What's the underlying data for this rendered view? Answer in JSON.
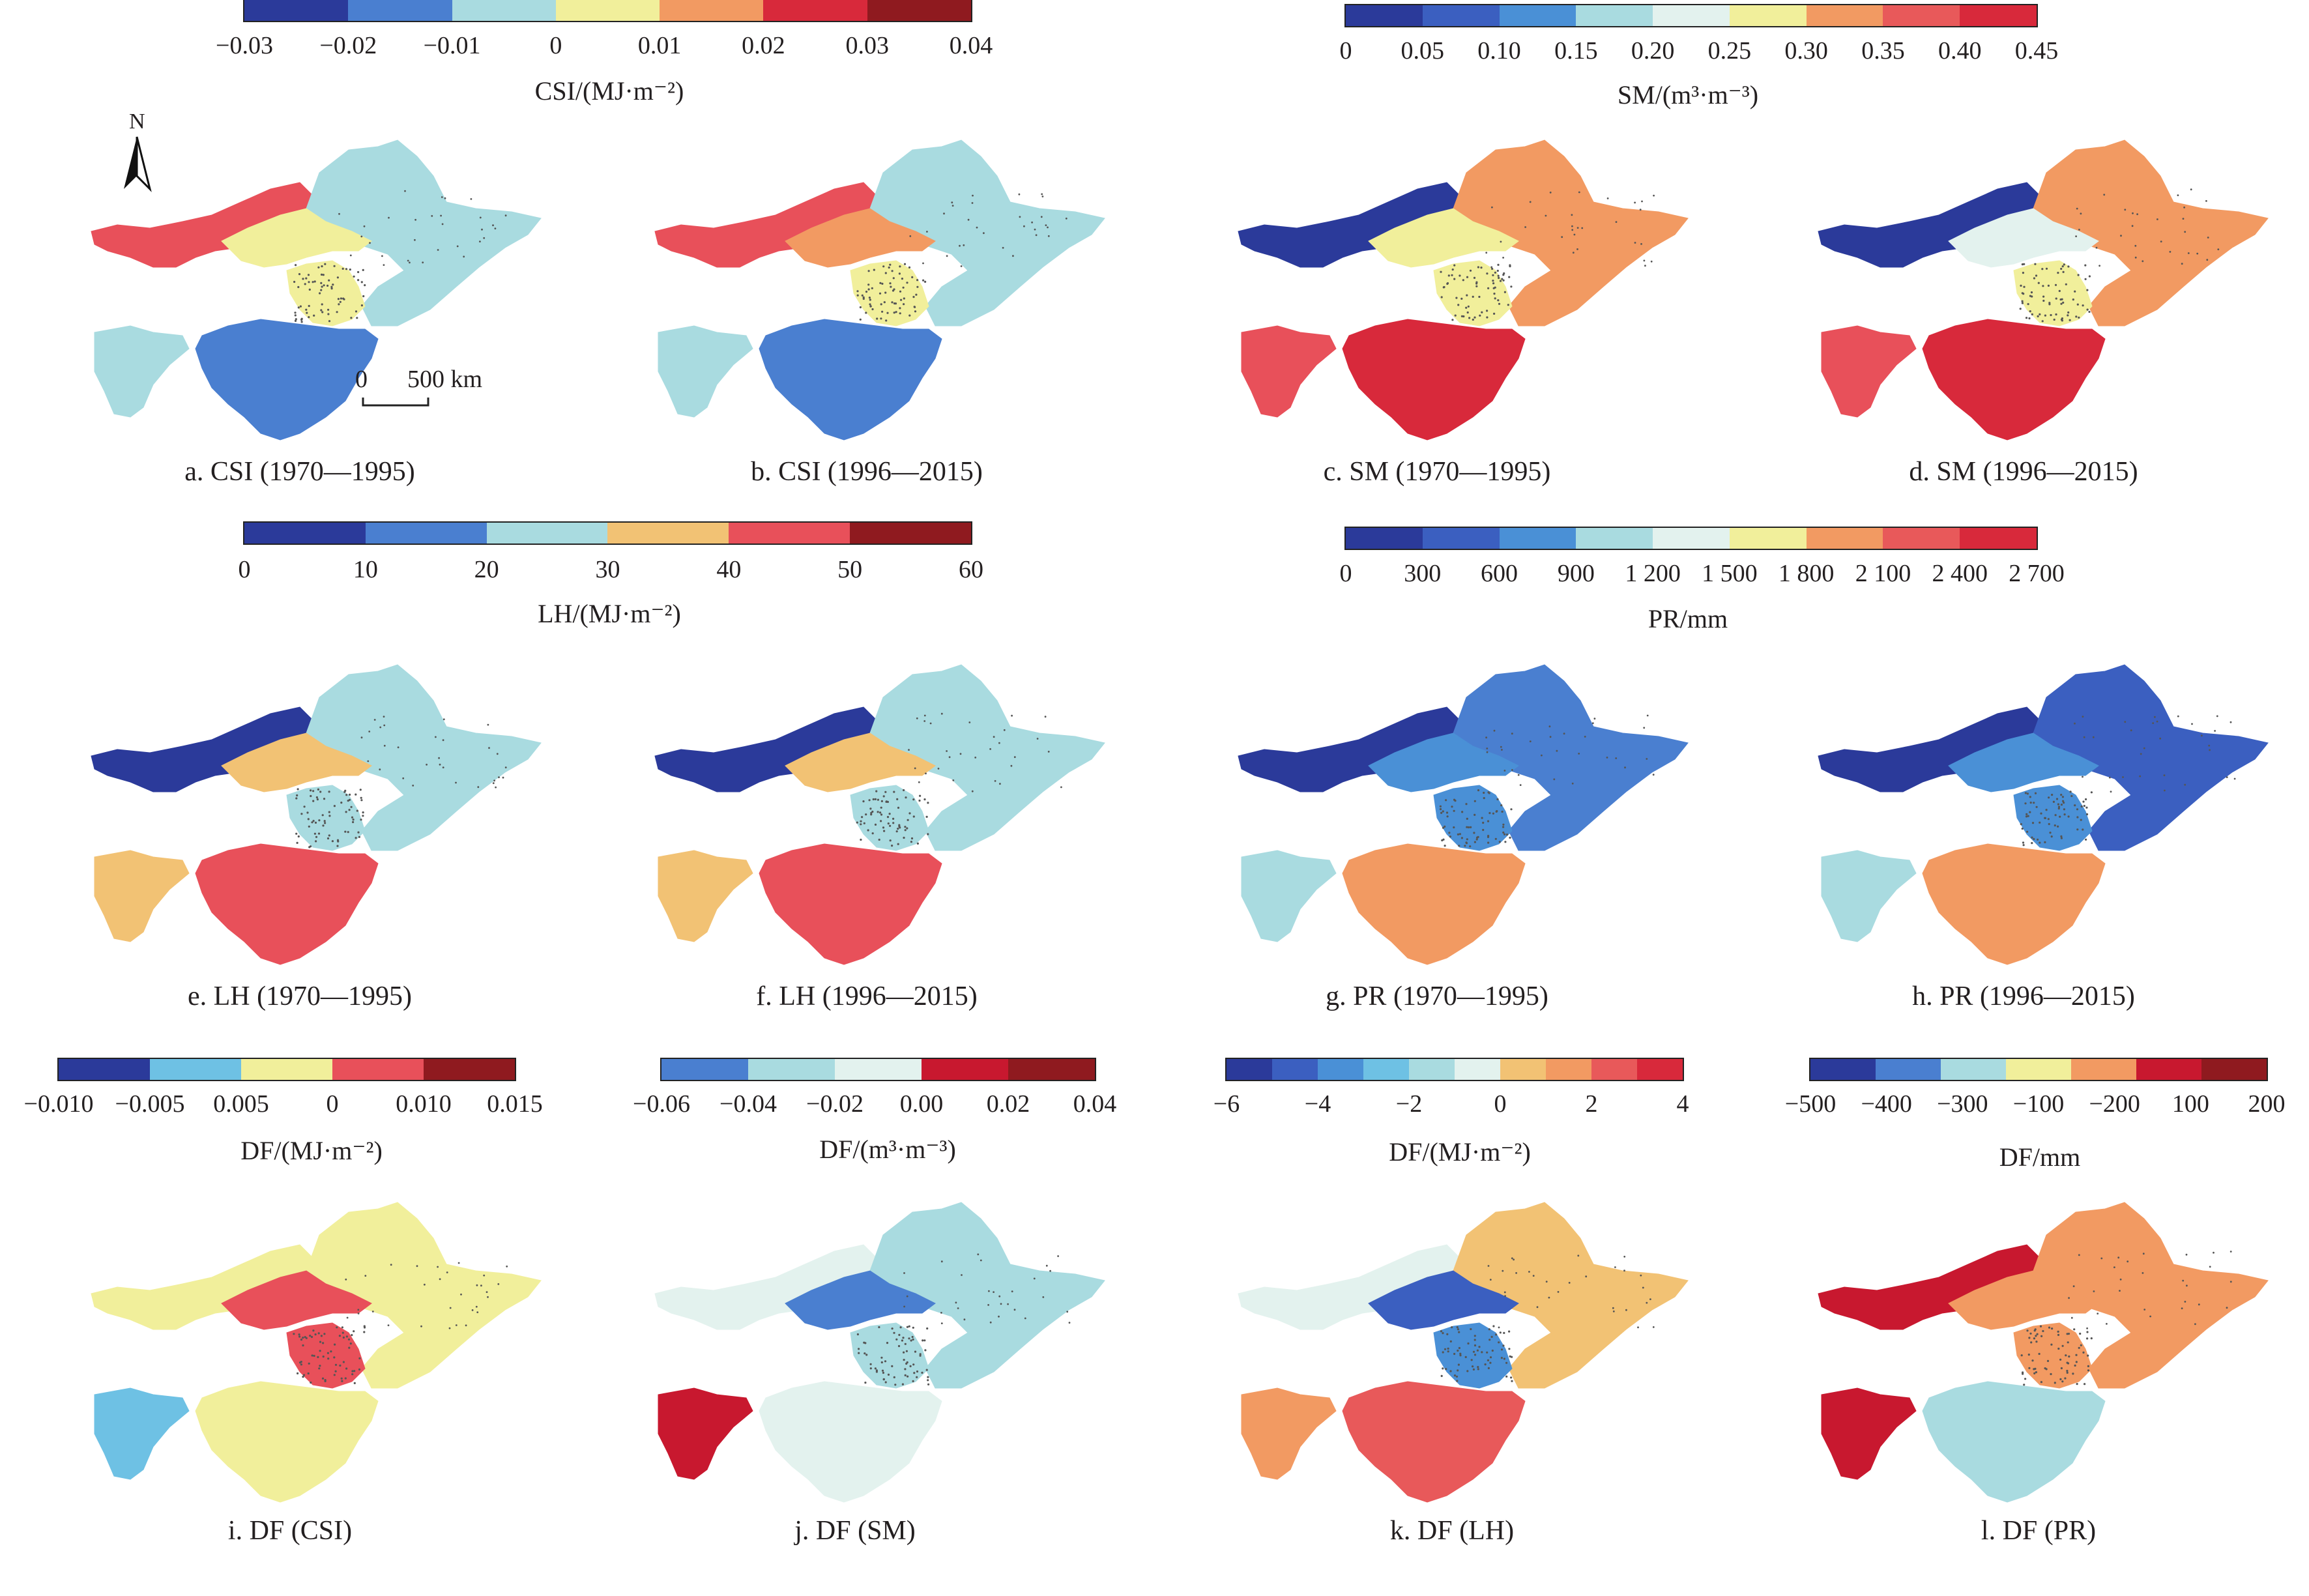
{
  "colorbars": [
    {
      "id": "csi",
      "label": "CSI/(MJ·m⁻²)",
      "ticks": [
        "−0.03",
        "−0.02",
        "−0.01",
        "0",
        "0.01",
        "0.02",
        "0.03",
        "0.04"
      ],
      "colors": [
        "#2b3a9a",
        "#4a7fd0",
        "#a9dbe0",
        "#f1ef9b",
        "#f29a62",
        "#d8293b",
        "#8f1a1f"
      ]
    },
    {
      "id": "sm",
      "label": "SM/(m³·m⁻³)",
      "ticks": [
        "0",
        "0.05",
        "0.10",
        "0.15",
        "0.20",
        "0.25",
        "0.30",
        "0.35",
        "0.40",
        "0.45"
      ],
      "colors": [
        "#2b3a9a",
        "#3b5fc0",
        "#4a90d6",
        "#a9dbe0",
        "#e3f2ee",
        "#f1ef9b",
        "#f29a62",
        "#e8595a",
        "#d8293b"
      ]
    },
    {
      "id": "lh",
      "label": "LH/(MJ·m⁻²)",
      "ticks": [
        "0",
        "10",
        "20",
        "30",
        "40",
        "50",
        "60"
      ],
      "colors": [
        "#2b3a9a",
        "#4a7fd0",
        "#a9dbe0",
        "#f2c274",
        "#e8505a",
        "#8f1a1f"
      ]
    },
    {
      "id": "pr",
      "label": "PR/mm",
      "ticks": [
        "0",
        "300",
        "600",
        "900",
        "1 200",
        "1 500",
        "1 800",
        "2 100",
        "2 400",
        "2 700"
      ],
      "colors": [
        "#2b3a9a",
        "#3b5fc0",
        "#4a90d6",
        "#a9dbe0",
        "#e3f2ee",
        "#f1ef9b",
        "#f29a62",
        "#e8595a",
        "#d8293b"
      ]
    },
    {
      "id": "df_csi",
      "label": "DF/(MJ·m⁻²)",
      "ticks": [
        "−0.010",
        "−0.005",
        "0.005",
        "0",
        "0.010",
        "0.015"
      ],
      "colors": [
        "#2b3a9a",
        "#6ec1e4",
        "#f1ef9b",
        "#e8505a",
        "#8f1a1f"
      ]
    },
    {
      "id": "df_sm",
      "label": "DF/(m³·m⁻³)",
      "ticks": [
        "−0.06",
        "−0.04",
        "−0.02",
        "0.00",
        "0.02",
        "0.04"
      ],
      "colors": [
        "#4a7fd0",
        "#a9dbe0",
        "#e3f2ee",
        "#c8182f",
        "#8f1a1f"
      ]
    },
    {
      "id": "df_lh",
      "label": "DF/(MJ·m⁻²)",
      "ticks": [
        "−6",
        "−4",
        "−2",
        "0",
        "2",
        "4"
      ],
      "colors": [
        "#2b3a9a",
        "#3b5fc0",
        "#4a90d6",
        "#6ec1e4",
        "#a9dbe0",
        "#e3f2ee",
        "#f2c274",
        "#f29a62",
        "#e8595a",
        "#d8293b"
      ]
    },
    {
      "id": "df_pr",
      "label": "DF/mm",
      "ticks": [
        "−500",
        "−400",
        "−300",
        "−100",
        "−200",
        "100",
        "200"
      ],
      "colors": [
        "#2b3a9a",
        "#4a7fd0",
        "#a9dbe0",
        "#f1ef9b",
        "#f29a62",
        "#c8182f",
        "#8f1a1f"
      ]
    }
  ],
  "panels": [
    {
      "id": "a",
      "caption": "a. CSI (1970—1995)",
      "north": "N",
      "scale_zero": "0",
      "scale_label": "500 km",
      "colors": {
        "nw": "#e8505a",
        "ne": "#a9dbe0",
        "mid": "#f1ef9b",
        "sw": "#a9dbe0",
        "se": "#4a7fd0",
        "ns": "#f1ef9b"
      }
    },
    {
      "id": "b",
      "caption": "b. CSI (1996—2015)",
      "colors": {
        "nw": "#e8505a",
        "ne": "#a9dbe0",
        "mid": "#f29a62",
        "sw": "#a9dbe0",
        "se": "#4a7fd0",
        "ns": "#f1ef9b"
      }
    },
    {
      "id": "c",
      "caption": "c. SM (1970—1995)",
      "colors": {
        "nw": "#2b3a9a",
        "ne": "#f29a62",
        "mid": "#f1ef9b",
        "sw": "#e8505a",
        "se": "#d8293b",
        "ns": "#f1ef9b"
      }
    },
    {
      "id": "d",
      "caption": "d. SM (1996—2015)",
      "colors": {
        "nw": "#2b3a9a",
        "ne": "#f29a62",
        "mid": "#e3f2ee",
        "sw": "#e8505a",
        "se": "#d8293b",
        "ns": "#f1ef9b"
      }
    },
    {
      "id": "e",
      "caption": "e. LH (1970—1995)",
      "colors": {
        "nw": "#2b3a9a",
        "ne": "#a9dbe0",
        "mid": "#f2c274",
        "sw": "#f2c274",
        "se": "#e8505a",
        "ns": "#a9dbe0"
      }
    },
    {
      "id": "f",
      "caption": "f. LH (1996—2015)",
      "colors": {
        "nw": "#2b3a9a",
        "ne": "#a9dbe0",
        "mid": "#f2c274",
        "sw": "#f2c274",
        "se": "#e8505a",
        "ns": "#a9dbe0"
      }
    },
    {
      "id": "g",
      "caption": "g. PR (1970—1995)",
      "colors": {
        "nw": "#2b3a9a",
        "ne": "#4a7fd0",
        "mid": "#4a90d6",
        "sw": "#a9dbe0",
        "se": "#f29a62",
        "ns": "#4a90d6"
      }
    },
    {
      "id": "h",
      "caption": "h. PR (1996—2015)",
      "colors": {
        "nw": "#2b3a9a",
        "ne": "#3b5fc0",
        "mid": "#4a90d6",
        "sw": "#a9dbe0",
        "se": "#f29a62",
        "ns": "#4a90d6"
      }
    },
    {
      "id": "i",
      "caption": "i. DF (CSI)",
      "colors": {
        "nw": "#f1ef9b",
        "ne": "#f1ef9b",
        "mid": "#e8505a",
        "sw": "#6ec1e4",
        "se": "#f1ef9b",
        "ns": "#e8505a"
      }
    },
    {
      "id": "j",
      "caption": "j. DF (SM)",
      "colors": {
        "nw": "#e3f2ee",
        "ne": "#a9dbe0",
        "mid": "#4a7fd0",
        "sw": "#c8182f",
        "se": "#e3f2ee",
        "ns": "#a9dbe0"
      }
    },
    {
      "id": "k",
      "caption": "k. DF (LH)",
      "colors": {
        "nw": "#e3f2ee",
        "ne": "#f2c274",
        "mid": "#3b5fc0",
        "sw": "#f29a62",
        "se": "#e8595a",
        "ns": "#4a90d6"
      }
    },
    {
      "id": "l",
      "caption": "l. DF (PR)",
      "colors": {
        "nw": "#c8182f",
        "ne": "#f29a62",
        "mid": "#f29a62",
        "sw": "#c8182f",
        "se": "#a9dbe0",
        "ns": "#f29a62"
      }
    }
  ]
}
